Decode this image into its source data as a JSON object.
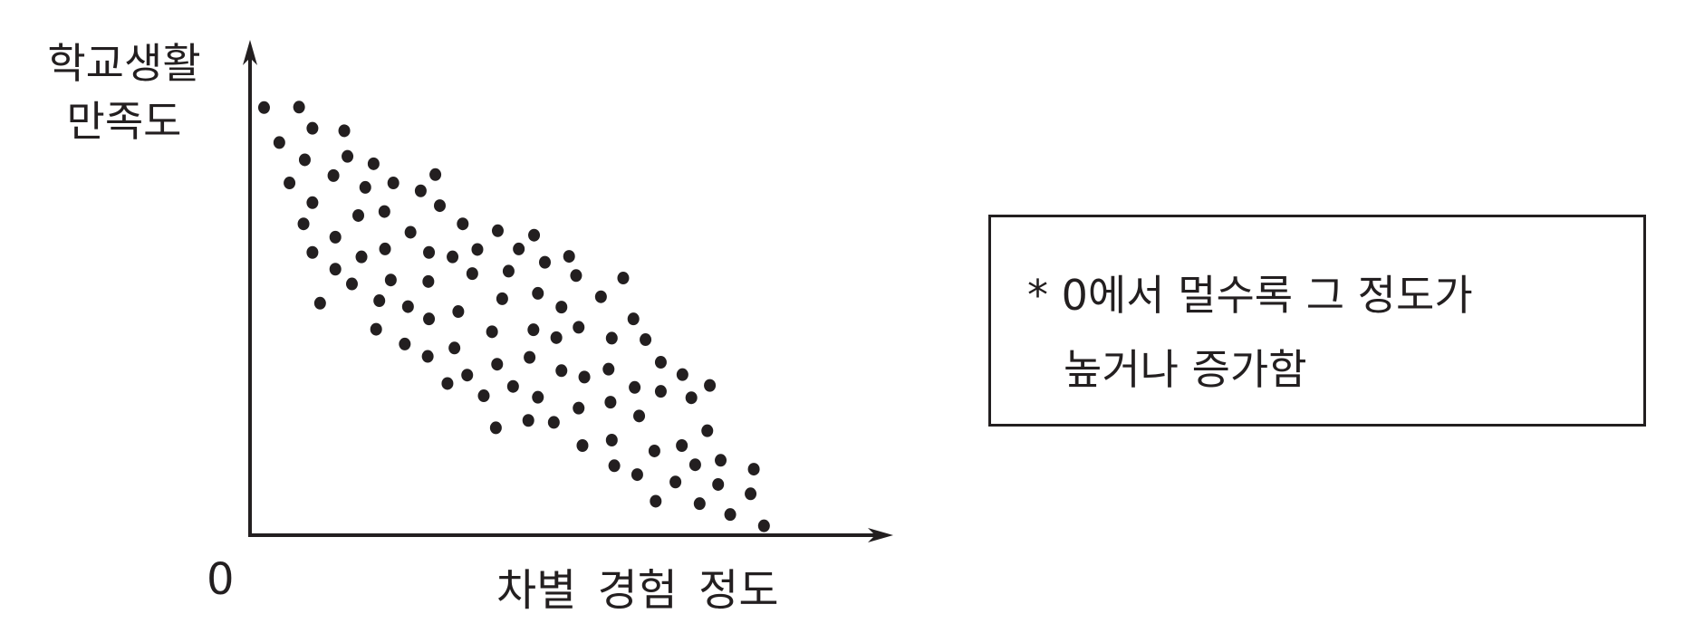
{
  "chart_data": {
    "type": "scatter",
    "title": "",
    "xlabel": "차별 경험 정도",
    "ylabel": "학교생활 만족도",
    "origin_label": "0",
    "xlim": [
      0,
      100
    ],
    "ylim": [
      0,
      100
    ],
    "grid": false,
    "legend": "none",
    "note": [
      "* 0에서 멀수록 그 정도가",
      "높거나 증가함"
    ],
    "marker_color": "#231f20",
    "points": [
      [
        2.2,
        86.8
      ],
      [
        7.7,
        86.9
      ],
      [
        9.8,
        82.6
      ],
      [
        14.8,
        82.1
      ],
      [
        4.6,
        79.7
      ],
      [
        8.6,
        76.2
      ],
      [
        15.3,
        76.9
      ],
      [
        19.4,
        75.4
      ],
      [
        6.2,
        71.5
      ],
      [
        13.1,
        73.0
      ],
      [
        18.1,
        70.6
      ],
      [
        22.5,
        71.5
      ],
      [
        26.8,
        69.9
      ],
      [
        29.1,
        73.2
      ],
      [
        9.8,
        67.5
      ],
      [
        17.0,
        64.9
      ],
      [
        21.1,
        65.7
      ],
      [
        29.8,
        66.9
      ],
      [
        8.4,
        63.2
      ],
      [
        33.4,
        63.2
      ],
      [
        13.4,
        60.5
      ],
      [
        25.2,
        61.5
      ],
      [
        38.9,
        61.8
      ],
      [
        44.6,
        60.9
      ],
      [
        9.8,
        57.4
      ],
      [
        17.5,
        56.5
      ],
      [
        21.2,
        58.1
      ],
      [
        28.1,
        57.4
      ],
      [
        31.8,
        56.5
      ],
      [
        35.7,
        58.0
      ],
      [
        42.2,
        58.1
      ],
      [
        46.3,
        55.4
      ],
      [
        50.1,
        56.6
      ],
      [
        13.4,
        54.0
      ],
      [
        34.9,
        53.1
      ],
      [
        40.6,
        53.6
      ],
      [
        51.2,
        52.7
      ],
      [
        58.6,
        52.2
      ],
      [
        16.0,
        51.0
      ],
      [
        22.1,
        51.8
      ],
      [
        28.0,
        51.5
      ],
      [
        11.0,
        47.1
      ],
      [
        20.3,
        47.6
      ],
      [
        24.8,
        46.4
      ],
      [
        39.6,
        48.0
      ],
      [
        45.2,
        49.1
      ],
      [
        48.9,
        46.3
      ],
      [
        55.1,
        48.4
      ],
      [
        28.1,
        43.9
      ],
      [
        32.7,
        45.4
      ],
      [
        19.8,
        41.8
      ],
      [
        38.0,
        41.3
      ],
      [
        44.5,
        41.7
      ],
      [
        48.1,
        40.1
      ],
      [
        51.6,
        42.2
      ],
      [
        56.8,
        40.0
      ],
      [
        60.2,
        43.9
      ],
      [
        62.1,
        39.7
      ],
      [
        24.3,
        38.8
      ],
      [
        32.1,
        38.0
      ],
      [
        27.9,
        36.3
      ],
      [
        43.9,
        36.1
      ],
      [
        38.8,
        34.7
      ],
      [
        64.5,
        35.1
      ],
      [
        48.9,
        33.4
      ],
      [
        56.3,
        33.7
      ],
      [
        52.5,
        32.1
      ],
      [
        67.9,
        32.6
      ],
      [
        72.2,
        30.4
      ],
      [
        31.0,
        30.8
      ],
      [
        34.1,
        32.5
      ],
      [
        41.3,
        30.2
      ],
      [
        60.4,
        30.0
      ],
      [
        64.5,
        29.2
      ],
      [
        36.7,
        28.3
      ],
      [
        45.2,
        28.0
      ],
      [
        69.3,
        27.9
      ],
      [
        51.6,
        25.8
      ],
      [
        56.6,
        27.0
      ],
      [
        61.1,
        24.2
      ],
      [
        38.6,
        21.8
      ],
      [
        43.7,
        23.3
      ],
      [
        47.7,
        22.9
      ],
      [
        71.8,
        21.2
      ],
      [
        52.2,
        18.2
      ],
      [
        56.8,
        19.3
      ],
      [
        63.5,
        17.1
      ],
      [
        67.8,
        18.2
      ],
      [
        73.9,
        15.2
      ],
      [
        69.9,
        14.3
      ],
      [
        79.1,
        13.4
      ],
      [
        57.2,
        14.1
      ],
      [
        60.8,
        12.3
      ],
      [
        66.8,
        10.8
      ],
      [
        73.5,
        10.3
      ],
      [
        78.6,
        8.4
      ],
      [
        63.7,
        6.9
      ],
      [
        70.6,
        6.4
      ],
      [
        75.4,
        4.2
      ],
      [
        80.7,
        1.9
      ]
    ]
  }
}
